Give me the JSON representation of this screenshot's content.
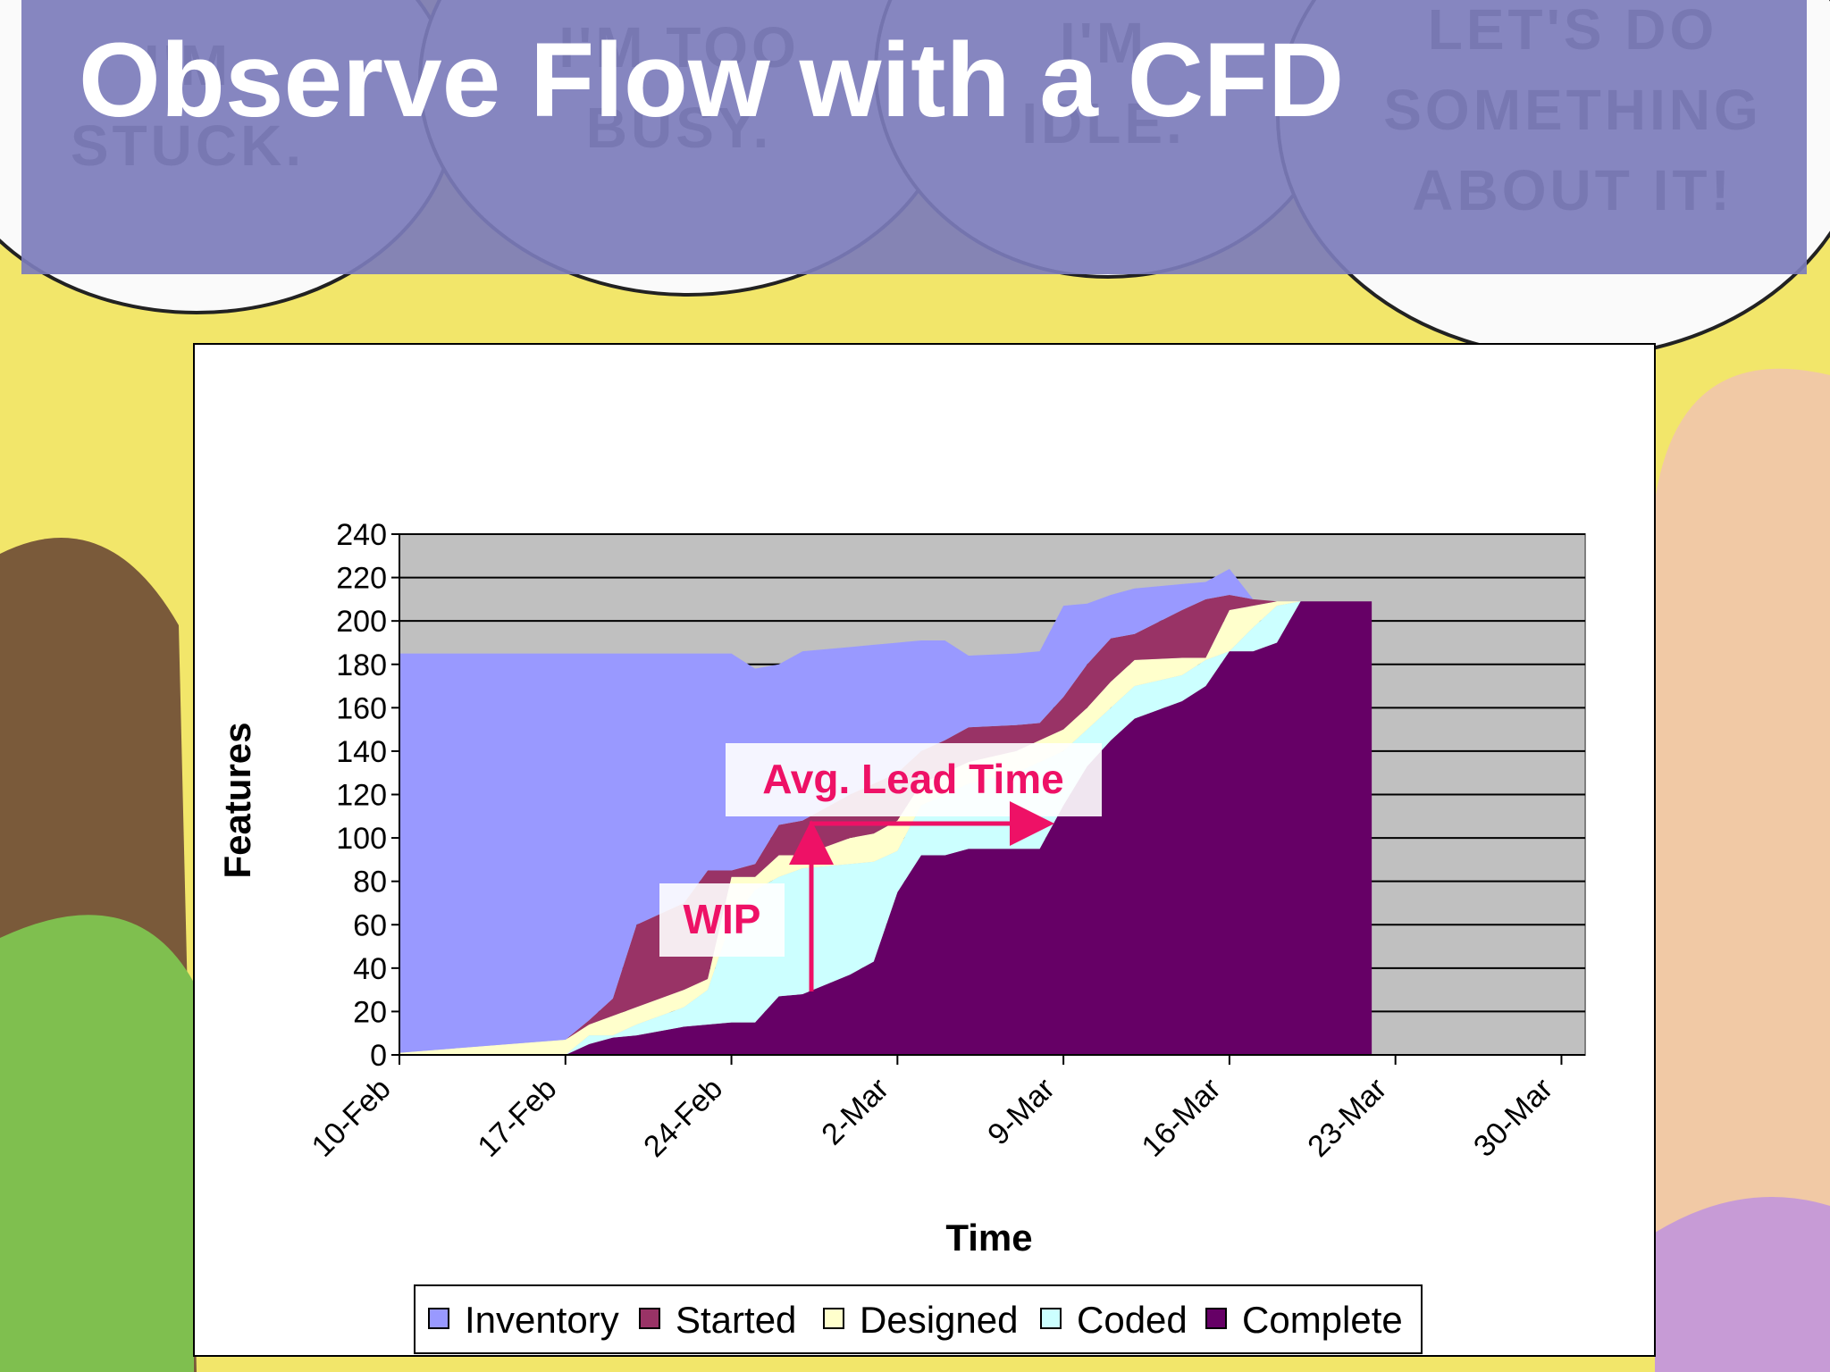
{
  "slide": {
    "title": "Observe Flow with a CFD",
    "bubbles": [
      [
        "I'M",
        "STUCK."
      ],
      [
        "I'M TOO",
        "BUSY."
      ],
      [
        "I'M",
        "IDLE."
      ],
      [
        "LET'S DO",
        "SOMETHING",
        "ABOUT IT!"
      ]
    ]
  },
  "chart_data": {
    "type": "stacked-area",
    "xlabel": "Time",
    "ylabel": "Features",
    "x": [
      0,
      7,
      8,
      9,
      10,
      12,
      13,
      14,
      15,
      16,
      17,
      19,
      20,
      21,
      22,
      23,
      24,
      26,
      27,
      28,
      29,
      30,
      31,
      33,
      34,
      35,
      36,
      37,
      38,
      41
    ],
    "series": [
      {
        "name": "Inventory",
        "color": "#9999ff",
        "values": [
          184,
          178,
          169,
          159,
          125,
          115,
          100,
          100,
          90,
          74,
          78,
          68,
          64,
          60,
          51,
          46,
          33,
          33,
          33,
          42,
          28,
          20,
          21,
          12,
          8,
          12,
          0,
          0,
          0,
          0
        ]
      },
      {
        "name": "Started",
        "color": "#993366",
        "values": [
          0,
          0,
          2,
          8,
          38,
          40,
          50,
          3,
          6,
          14,
          16,
          20,
          23,
          22,
          15,
          15,
          16,
          12,
          8,
          15,
          20,
          20,
          12,
          22,
          27,
          7,
          3,
          0,
          0,
          0
        ]
      },
      {
        "name": "Designed",
        "color": "#ffffcc",
        "values": [
          1,
          7,
          5,
          9,
          8,
          8,
          5,
          20,
          6,
          10,
          6,
          12,
          13,
          14,
          10,
          10,
          10,
          10,
          10,
          10,
          10,
          12,
          12,
          8,
          1,
          19,
          10,
          2,
          0,
          0
        ]
      },
      {
        "name": "Coded",
        "color": "#ccffff",
        "values": [
          0,
          0,
          4,
          1,
          5,
          9,
          16,
          47,
          61,
          55,
          58,
          51,
          46,
          19,
          23,
          28,
          30,
          35,
          40,
          25,
          17,
          15,
          15,
          12,
          12,
          0,
          11,
          17,
          0,
          0
        ]
      },
      {
        "name": "Complete",
        "color": "#660066",
        "values": [
          0,
          0,
          5,
          8,
          9,
          13,
          14,
          15,
          15,
          27,
          28,
          37,
          43,
          75,
          92,
          92,
          95,
          95,
          95,
          115,
          133,
          145,
          155,
          163,
          170,
          186,
          186,
          190,
          209,
          209
        ]
      }
    ],
    "xlim": [
      0,
      50
    ],
    "xticks": [
      {
        "value": 0,
        "label": "10-Feb"
      },
      {
        "value": 7,
        "label": "17-Feb"
      },
      {
        "value": 14,
        "label": "24-Feb"
      },
      {
        "value": 21,
        "label": "2-Mar"
      },
      {
        "value": 28,
        "label": "9-Mar"
      },
      {
        "value": 35,
        "label": "16-Mar"
      },
      {
        "value": 42,
        "label": "23-Mar"
      },
      {
        "value": 49,
        "label": "30-Mar"
      }
    ],
    "ylim": [
      0,
      240
    ],
    "yticks": [
      0,
      20,
      40,
      60,
      80,
      100,
      120,
      140,
      160,
      180,
      200,
      220,
      240
    ],
    "grid": true,
    "plot_background": "#c0c0c0",
    "legend": "bottom",
    "annotations": [
      "WIP",
      "Avg. Lead Time"
    ]
  }
}
